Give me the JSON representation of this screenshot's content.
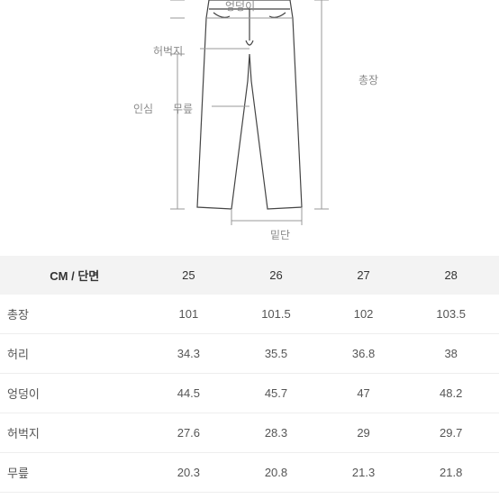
{
  "diagram": {
    "labels": {
      "hips": "엉덩이",
      "thigh": "허벅지",
      "total_length": "총장",
      "inseam": "인심",
      "knee": "무릎",
      "hem": "밑단"
    },
    "stroke_color": "#444444",
    "guide_color": "#999999",
    "bg_color": "#ffffff",
    "label_color": "#8a8a8a",
    "label_fontsize": 12
  },
  "table": {
    "header_bg": "#f3f3f3",
    "row_border": "#eeeeee",
    "text_color": "#555555",
    "corner_header": "CM / 단면",
    "columns": [
      "25",
      "26",
      "27",
      "28"
    ],
    "rows": [
      {
        "label": "총장",
        "values": [
          "101",
          "101.5",
          "102",
          "103.5"
        ]
      },
      {
        "label": "허리",
        "values": [
          "34.3",
          "35.5",
          "36.8",
          "38"
        ]
      },
      {
        "label": "엉덩이",
        "values": [
          "44.5",
          "45.7",
          "47",
          "48.2"
        ]
      },
      {
        "label": "허벅지",
        "values": [
          "27.6",
          "28.3",
          "29",
          "29.7"
        ]
      },
      {
        "label": "무릎",
        "values": [
          "20.3",
          "20.8",
          "21.3",
          "21.8"
        ]
      }
    ]
  }
}
